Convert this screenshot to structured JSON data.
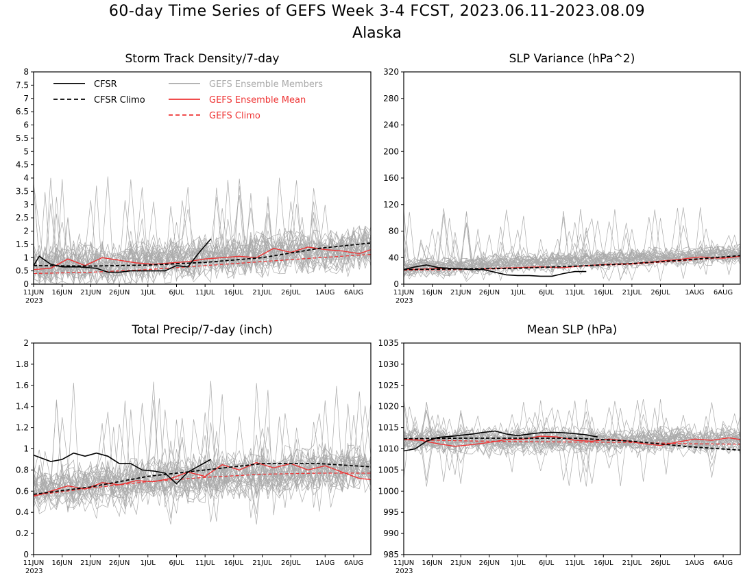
{
  "title": "60-day Time Series of GEFS Week 3-4 FCST, 2023.06.11-2023.08.09",
  "region": "Alaska",
  "colors": {
    "cfsr": "#000000",
    "members": "#aaaaaa",
    "gefs_mean": "#ee3333",
    "gefs_climo": "#ee3333"
  },
  "legend": {
    "cfsr": "CFSR",
    "cfsr_climo": "CFSR Climo",
    "members": "GEFS Ensemble Members",
    "gefs_mean": "GEFS Ensemble Mean",
    "gefs_climo": "GEFS Climo"
  },
  "chart_data": [
    {
      "type": "line",
      "title": "Storm Track Density/7-day",
      "x_ticks": [
        "11JUN",
        "16JUN",
        "21JUN",
        "26JUN",
        "1JUL",
        "6JUL",
        "11JUL",
        "16JUL",
        "21JUL",
        "26JUL",
        "1AUG",
        "6AUG"
      ],
      "x_year": "2023",
      "ylim": [
        0,
        8
      ],
      "y_ticks": [
        "0",
        "0.5",
        "1",
        "1.5",
        "2",
        "2.5",
        "3",
        "3.5",
        "4",
        "4.5",
        "5",
        "5.5",
        "6",
        "6.5",
        "7",
        "7.5",
        "8"
      ],
      "series": [
        {
          "name": "CFSR",
          "x_day": [
            0,
            1,
            3,
            5,
            8,
            11,
            13,
            15,
            17,
            19,
            21,
            23,
            25,
            27,
            29,
            31
          ],
          "values": [
            0.7,
            1.05,
            0.75,
            0.65,
            0.65,
            0.6,
            0.45,
            0.45,
            0.5,
            0.5,
            0.5,
            0.5,
            0.7,
            0.65,
            1.2,
            1.7
          ]
        },
        {
          "name": "CFSR Climo",
          "x_day": [
            0,
            10,
            20,
            30,
            40,
            50,
            59
          ],
          "values": [
            0.7,
            0.68,
            0.72,
            0.82,
            1.0,
            1.35,
            1.55
          ]
        },
        {
          "name": "GEFS Ensemble Mean",
          "x_day": [
            0,
            3,
            6,
            9,
            12,
            15,
            18,
            21,
            24,
            27,
            30,
            33,
            36,
            39,
            42,
            45,
            48,
            51,
            54,
            57,
            59
          ],
          "values": [
            0.55,
            0.6,
            0.95,
            0.7,
            1.0,
            0.9,
            0.8,
            0.75,
            0.8,
            0.85,
            0.95,
            1.0,
            1.05,
            1.0,
            1.35,
            1.2,
            1.4,
            1.3,
            1.25,
            1.15,
            1.3
          ]
        },
        {
          "name": "GEFS Climo",
          "x_day": [
            0,
            10,
            20,
            30,
            40,
            50,
            59
          ],
          "values": [
            0.4,
            0.45,
            0.55,
            0.7,
            0.85,
            1.0,
            1.12
          ]
        }
      ],
      "members": {
        "count": 31,
        "center": 1.0,
        "spread": 0.65,
        "max": 4.1,
        "min": 0.0
      }
    },
    {
      "type": "line",
      "title": "SLP Variance (hPa^2)",
      "x_ticks": [
        "11JUN",
        "16JUN",
        "21JUN",
        "26JUN",
        "1JUL",
        "6JUL",
        "11JUL",
        "16JUL",
        "21JUL",
        "26JUL",
        "1AUG",
        "6AUG"
      ],
      "x_year": "2023",
      "ylim": [
        0,
        320
      ],
      "y_ticks": [
        "0",
        "40",
        "80",
        "120",
        "160",
        "200",
        "240",
        "280",
        "320"
      ],
      "series": [
        {
          "name": "CFSR",
          "x_day": [
            0,
            2,
            4,
            6,
            8,
            10,
            12,
            14,
            16,
            18,
            20,
            22,
            24,
            26,
            28,
            30,
            32
          ],
          "values": [
            22,
            26,
            29,
            25,
            24,
            23,
            22,
            22,
            18,
            14,
            13,
            13,
            12,
            12,
            16,
            19,
            19
          ]
        },
        {
          "name": "CFSR Climo",
          "x_day": [
            0,
            10,
            20,
            30,
            40,
            50,
            59
          ],
          "values": [
            22,
            23,
            24,
            27,
            31,
            37,
            43
          ]
        },
        {
          "name": "GEFS Ensemble Mean",
          "x_day": [
            0,
            4,
            8,
            12,
            16,
            20,
            24,
            28,
            32,
            36,
            40,
            44,
            48,
            52,
            56,
            59
          ],
          "values": [
            22,
            23,
            24,
            22,
            24,
            25,
            26,
            25,
            28,
            30,
            31,
            34,
            37,
            41,
            39,
            42
          ]
        },
        {
          "name": "GEFS Climo",
          "x_day": [
            0,
            10,
            20,
            30,
            40,
            50,
            59
          ],
          "values": [
            21,
            22,
            24,
            27,
            30,
            36,
            42
          ]
        }
      ],
      "members": {
        "count": 31,
        "center": 30.0,
        "spread": 12.0,
        "max": 118.0,
        "min": 4.0
      }
    },
    {
      "type": "line",
      "title": "Total Precip/7-day (inch)",
      "x_ticks": [
        "11JUN",
        "16JUN",
        "21JUN",
        "26JUN",
        "1JUL",
        "6JUL",
        "11JUL",
        "16JUL",
        "21JUL",
        "26JUL",
        "1AUG",
        "6AUG"
      ],
      "x_year": "2023",
      "ylim": [
        0,
        2
      ],
      "y_ticks": [
        "0",
        "0.2",
        "0.4",
        "0.6",
        "0.8",
        "1",
        "1.2",
        "1.4",
        "1.6",
        "1.8",
        "2"
      ],
      "series": [
        {
          "name": "CFSR",
          "x_day": [
            0,
            3,
            5,
            7,
            9,
            11,
            13,
            15,
            17,
            19,
            21,
            23,
            25,
            27,
            29,
            31
          ],
          "values": [
            0.94,
            0.88,
            0.9,
            0.96,
            0.93,
            0.96,
            0.93,
            0.86,
            0.86,
            0.8,
            0.79,
            0.77,
            0.67,
            0.78,
            0.84,
            0.9
          ]
        },
        {
          "name": "CFSR Climo",
          "x_day": [
            0,
            10,
            20,
            30,
            40,
            50,
            59
          ],
          "values": [
            0.57,
            0.64,
            0.74,
            0.8,
            0.86,
            0.86,
            0.83
          ]
        },
        {
          "name": "GEFS Ensemble Mean",
          "x_day": [
            0,
            3,
            6,
            9,
            12,
            15,
            18,
            21,
            24,
            27,
            30,
            33,
            36,
            39,
            42,
            45,
            48,
            51,
            54,
            57,
            59
          ],
          "values": [
            0.55,
            0.6,
            0.65,
            0.62,
            0.68,
            0.66,
            0.7,
            0.69,
            0.72,
            0.78,
            0.74,
            0.85,
            0.8,
            0.87,
            0.82,
            0.86,
            0.8,
            0.84,
            0.78,
            0.72,
            0.71
          ]
        },
        {
          "name": "GEFS Climo",
          "x_day": [
            0,
            10,
            20,
            30,
            40,
            50,
            59
          ],
          "values": [
            0.56,
            0.63,
            0.69,
            0.73,
            0.76,
            0.77,
            0.77
          ]
        }
      ],
      "members": {
        "count": 31,
        "center": 0.72,
        "spread": 0.18,
        "max": 1.65,
        "min": 0.28
      }
    },
    {
      "type": "line",
      "title": "Mean SLP (hPa)",
      "x_ticks": [
        "11JUN",
        "16JUN",
        "21JUN",
        "26JUN",
        "1JUL",
        "6JUL",
        "11JUL",
        "16JUL",
        "21JUL",
        "26JUL",
        "1AUG",
        "6AUG"
      ],
      "x_year": "2023",
      "ylim": [
        985,
        1035
      ],
      "y_ticks": [
        "985",
        "990",
        "995",
        "1000",
        "1005",
        "1010",
        "1015",
        "1020",
        "1025",
        "1030",
        "1035"
      ],
      "series": [
        {
          "name": "CFSR",
          "x_day": [
            0,
            2,
            4,
            6,
            8,
            10,
            12,
            14,
            16,
            18,
            20,
            22,
            24,
            26,
            28,
            30,
            32,
            34
          ],
          "values": [
            1009.5,
            1010.0,
            1011.8,
            1012.7,
            1012.9,
            1013.2,
            1013.5,
            1013.9,
            1014.2,
            1013.5,
            1013.1,
            1013.5,
            1013.8,
            1013.9,
            1013.8,
            1013.6,
            1013.3,
            1012.8
          ]
        },
        {
          "name": "CFSR Climo",
          "x_day": [
            0,
            10,
            20,
            30,
            40,
            50,
            59
          ],
          "values": [
            1012.4,
            1012.5,
            1012.5,
            1012.5,
            1011.8,
            1010.5,
            1009.7
          ]
        },
        {
          "name": "GEFS Ensemble Mean",
          "x_day": [
            0,
            3,
            6,
            9,
            12,
            15,
            18,
            21,
            24,
            27,
            30,
            33,
            36,
            39,
            42,
            45,
            48,
            51,
            54,
            57,
            59
          ],
          "values": [
            1012.2,
            1012.0,
            1011.2,
            1010.6,
            1011.0,
            1011.5,
            1012.2,
            1012.3,
            1013.0,
            1012.8,
            1012.0,
            1011.8,
            1012.3,
            1011.9,
            1011.2,
            1010.8,
            1011.6,
            1012.3,
            1012.0,
            1012.6,
            1012.2
          ]
        },
        {
          "name": "GEFS Climo",
          "x_day": [
            0,
            10,
            20,
            30,
            40,
            50,
            59
          ],
          "values": [
            1012.2,
            1011.9,
            1011.7,
            1011.6,
            1011.5,
            1011.2,
            1011.1
          ]
        }
      ],
      "members": {
        "count": 31,
        "center": 1012.0,
        "spread": 2.5,
        "max": 1022.0,
        "min": 1001.0
      }
    }
  ]
}
